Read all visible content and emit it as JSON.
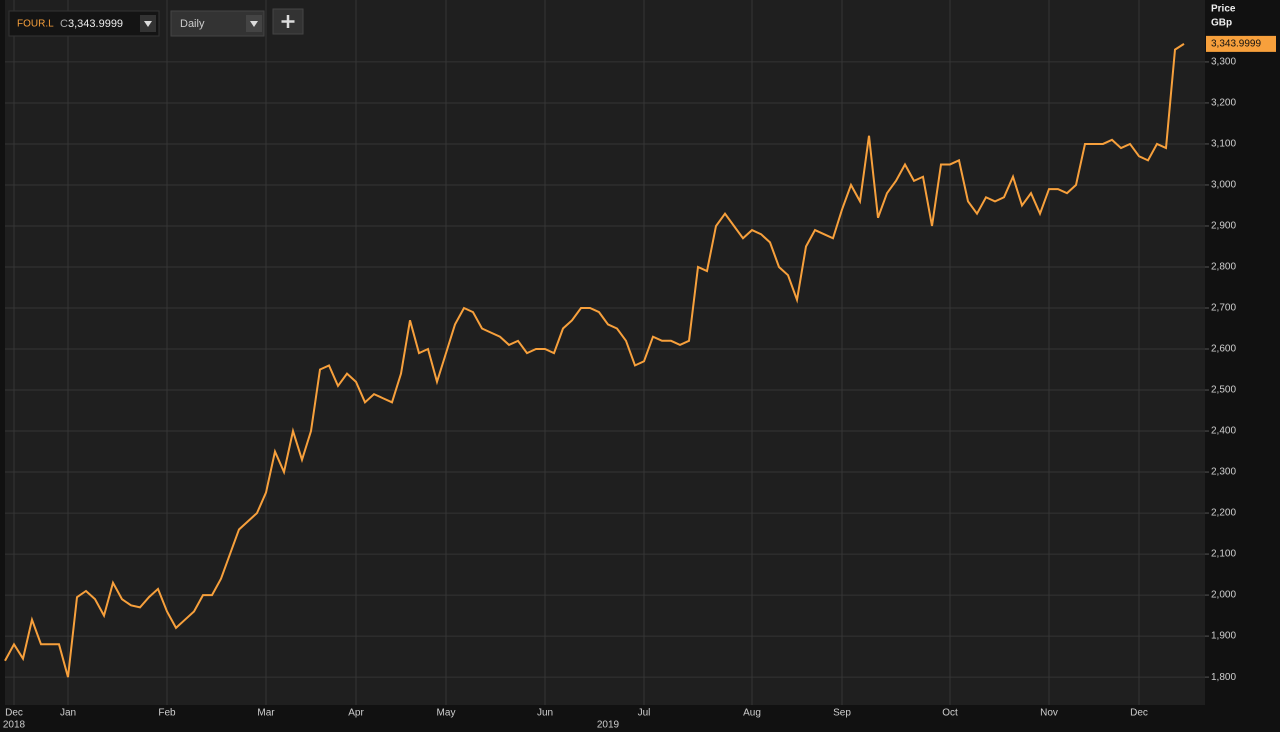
{
  "toolbar": {
    "symbol": "FOUR.L",
    "price_prefix": "C",
    "price": "3,343.9999",
    "interval": "Daily"
  },
  "chart_data": {
    "type": "line",
    "y_label": [
      "Price",
      "GBp"
    ],
    "categories": [
      null,
      "Dec",
      null,
      null,
      null,
      null,
      null,
      "Jan",
      null,
      null,
      null,
      null,
      null,
      null,
      null,
      null,
      null,
      null,
      "Feb",
      null,
      null,
      null,
      null,
      null,
      null,
      null,
      null,
      null,
      null,
      "Mar",
      null,
      null,
      null,
      null,
      null,
      null,
      null,
      null,
      null,
      "Apr",
      null,
      null,
      null,
      null,
      null,
      null,
      null,
      null,
      null,
      "May",
      null,
      null,
      null,
      null,
      null,
      null,
      null,
      null,
      null,
      null,
      "Jun",
      null,
      null,
      null,
      null,
      null,
      null,
      null,
      null,
      null,
      null,
      "Jul",
      null,
      null,
      null,
      null,
      null,
      null,
      null,
      null,
      null,
      null,
      null,
      "Aug",
      null,
      null,
      null,
      null,
      null,
      null,
      null,
      null,
      null,
      "Sep",
      null,
      null,
      null,
      null,
      null,
      null,
      null,
      null,
      null,
      null,
      null,
      "Oct",
      null,
      null,
      null,
      null,
      null,
      null,
      null,
      null,
      null,
      null,
      "Nov",
      null,
      null,
      null,
      null,
      null,
      null,
      null,
      null,
      null,
      "Dec",
      null,
      null,
      null,
      null,
      null
    ],
    "years": [
      null,
      "2018",
      null,
      null,
      null,
      null,
      null,
      null,
      null,
      null,
      null,
      null,
      null,
      null,
      null,
      null,
      null,
      null,
      null,
      null,
      null,
      null,
      null,
      null,
      null,
      null,
      null,
      null,
      null,
      null,
      null,
      null,
      null,
      null,
      null,
      null,
      null,
      null,
      null,
      null,
      null,
      null,
      null,
      null,
      null,
      null,
      null,
      null,
      null,
      null,
      null,
      null,
      null,
      null,
      null,
      null,
      null,
      null,
      null,
      null,
      null,
      null,
      null,
      null,
      null,
      null,
      null,
      "2019",
      null,
      null,
      null,
      null,
      null,
      null,
      null,
      null,
      null,
      null,
      null,
      null,
      null,
      null,
      null,
      null,
      null,
      null,
      null,
      null,
      null,
      null,
      null,
      null,
      null,
      null,
      null,
      null,
      null,
      null,
      null,
      null,
      null,
      null,
      null,
      null,
      null,
      null,
      null,
      null,
      null,
      null,
      null,
      null,
      null,
      null,
      null,
      null,
      null,
      null,
      null,
      null,
      null,
      null,
      null,
      null,
      null,
      null,
      null,
      null,
      null,
      null,
      null,
      null,
      null,
      null,
      null
    ],
    "series": [
      {
        "name": "FOUR.L",
        "color": "#f7a03c",
        "values": [
          1840,
          1880,
          1845,
          1940,
          1880,
          1880,
          1880,
          1800,
          1995,
          2010,
          1990,
          1950,
          2030,
          1990,
          1975,
          1970,
          1995,
          2015,
          1960,
          1920,
          1940,
          1960,
          2000,
          2000,
          2040,
          2100,
          2160,
          2180,
          2200,
          2250,
          2350,
          2300,
          2400,
          2330,
          2400,
          2550,
          2560,
          2510,
          2540,
          2520,
          2470,
          2490,
          2480,
          2470,
          2540,
          2670,
          2590,
          2600,
          2520,
          2590,
          2660,
          2700,
          2690,
          2650,
          2640,
          2630,
          2610,
          2620,
          2590,
          2600,
          2600,
          2590,
          2650,
          2670,
          2700,
          2700,
          2690,
          2660,
          2650,
          2620,
          2560,
          2570,
          2630,
          2620,
          2620,
          2610,
          2620,
          2800,
          2790,
          2900,
          2930,
          2900,
          2870,
          2890,
          2880,
          2860,
          2800,
          2780,
          2720,
          2850,
          2890,
          2880,
          2870,
          2940,
          3000,
          2960,
          3120,
          2920,
          2980,
          3010,
          3050,
          3010,
          3020,
          2900,
          3050,
          3050,
          3060,
          2960,
          2930,
          2970,
          2960,
          2970,
          3020,
          2950,
          2980,
          2930,
          2990,
          2990,
          2980,
          3000,
          3100,
          3100,
          3100,
          3110,
          3090,
          3100,
          3070,
          3060,
          3100,
          3090,
          3330,
          3343.9999
        ],
        "value_labels": [
          null,
          null,
          null,
          null,
          null,
          null,
          null,
          null,
          null,
          null,
          null,
          null,
          null,
          null,
          null,
          null,
          null,
          null,
          null,
          null,
          null,
          null,
          null,
          null,
          null,
          null,
          null,
          null,
          null,
          null,
          null,
          null,
          null,
          null,
          null,
          null,
          null,
          null,
          null,
          null,
          null,
          null,
          null,
          null,
          null,
          null,
          null,
          null,
          null,
          null,
          null,
          null,
          null,
          null,
          null,
          null,
          null,
          null,
          null,
          null,
          null,
          null,
          null,
          null,
          null,
          null,
          null,
          null,
          null,
          null,
          null,
          null,
          null,
          null,
          null,
          null,
          null,
          null,
          null,
          null,
          null,
          null,
          null,
          null,
          null,
          null,
          null,
          null,
          null,
          null,
          null,
          null,
          null,
          null,
          null,
          null,
          null,
          null,
          null,
          null,
          null,
          null,
          null,
          null,
          null,
          null,
          null,
          null,
          null,
          null,
          null,
          null,
          null,
          null,
          null,
          null,
          null,
          null,
          null,
          null,
          null,
          null,
          null,
          null,
          null,
          null,
          null,
          null,
          null,
          null,
          null,
          "3,343.9999"
        ]
      }
    ],
    "ylim": [
      1732,
      3451
    ],
    "yticks": [
      {
        "value": 1800,
        "label": "1,800"
      },
      {
        "value": 1900,
        "label": "1,900"
      },
      {
        "value": 2000,
        "label": "2,000"
      },
      {
        "value": 2100,
        "label": "2,100"
      },
      {
        "value": 2200,
        "label": "2,200"
      },
      {
        "value": 2300,
        "label": "2,300"
      },
      {
        "value": 2400,
        "label": "2,400"
      },
      {
        "value": 2500,
        "label": "2,500"
      },
      {
        "value": 2600,
        "label": "2,600"
      },
      {
        "value": 2700,
        "label": "2,700"
      },
      {
        "value": 2800,
        "label": "2,800"
      },
      {
        "value": 2900,
        "label": "2,900"
      },
      {
        "value": 3000,
        "label": "3,000"
      },
      {
        "value": 3100,
        "label": "3,100"
      },
      {
        "value": 3200,
        "label": "3,200"
      },
      {
        "value": 3300,
        "label": "3,300"
      }
    ],
    "grid": true
  }
}
